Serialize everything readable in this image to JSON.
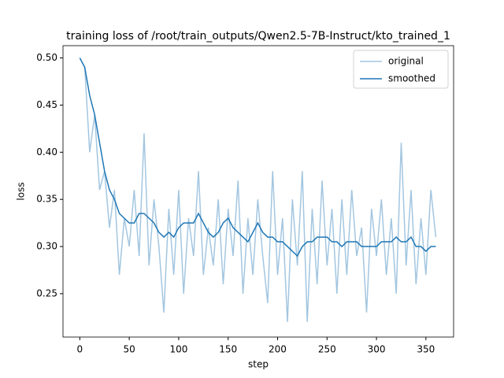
{
  "chart_data": {
    "type": "line",
    "title": "training loss of /root/train_outputs/Qwen2.5-7B-Instruct/kto_trained_1",
    "x_label": "step",
    "y_label": "loss",
    "x": [
      0,
      5,
      10,
      15,
      20,
      25,
      30,
      35,
      40,
      45,
      50,
      55,
      60,
      65,
      70,
      75,
      80,
      85,
      90,
      95,
      100,
      105,
      110,
      115,
      120,
      125,
      130,
      135,
      140,
      145,
      150,
      155,
      160,
      165,
      170,
      175,
      180,
      185,
      190,
      195,
      200,
      205,
      210,
      215,
      220,
      225,
      230,
      235,
      240,
      245,
      250,
      255,
      260,
      265,
      270,
      275,
      280,
      285,
      290,
      295,
      300,
      305,
      310,
      315,
      320,
      325,
      330,
      335,
      340,
      345,
      350,
      355,
      360
    ],
    "series": [
      {
        "name": "original",
        "color": "#a3c6e0",
        "values": [
          0.5,
          0.49,
          0.4,
          0.44,
          0.36,
          0.38,
          0.32,
          0.36,
          0.27,
          0.33,
          0.3,
          0.36,
          0.29,
          0.42,
          0.28,
          0.35,
          0.3,
          0.23,
          0.34,
          0.27,
          0.36,
          0.25,
          0.33,
          0.29,
          0.38,
          0.27,
          0.32,
          0.28,
          0.35,
          0.26,
          0.34,
          0.29,
          0.37,
          0.25,
          0.33,
          0.27,
          0.35,
          0.29,
          0.24,
          0.38,
          0.27,
          0.33,
          0.22,
          0.35,
          0.28,
          0.38,
          0.22,
          0.34,
          0.26,
          0.37,
          0.28,
          0.34,
          0.25,
          0.35,
          0.27,
          0.36,
          0.29,
          0.32,
          0.23,
          0.34,
          0.29,
          0.35,
          0.27,
          0.33,
          0.25,
          0.41,
          0.28,
          0.36,
          0.26,
          0.33,
          0.27,
          0.36,
          0.31
        ]
      },
      {
        "name": "smoothed",
        "color": "#1f77b4",
        "values": [
          0.5,
          0.49,
          0.46,
          0.44,
          0.41,
          0.38,
          0.36,
          0.35,
          0.335,
          0.33,
          0.325,
          0.325,
          0.335,
          0.335,
          0.33,
          0.325,
          0.315,
          0.31,
          0.315,
          0.31,
          0.32,
          0.325,
          0.325,
          0.325,
          0.335,
          0.325,
          0.315,
          0.31,
          0.315,
          0.325,
          0.33,
          0.32,
          0.315,
          0.31,
          0.305,
          0.315,
          0.325,
          0.315,
          0.31,
          0.31,
          0.305,
          0.305,
          0.3,
          0.295,
          0.29,
          0.3,
          0.305,
          0.305,
          0.31,
          0.31,
          0.31,
          0.305,
          0.305,
          0.3,
          0.305,
          0.305,
          0.305,
          0.3,
          0.3,
          0.3,
          0.3,
          0.305,
          0.305,
          0.305,
          0.31,
          0.305,
          0.305,
          0.31,
          0.3,
          0.3,
          0.295,
          0.3,
          0.3
        ]
      }
    ],
    "xlim": [
      -17,
      378
    ],
    "ylim": [
      0.204,
      0.513
    ],
    "xticks": [
      0,
      50,
      100,
      150,
      200,
      250,
      300,
      350
    ],
    "yticks": [
      0.25,
      {
        "value": 0.3,
        "label": "0.30"
      },
      0.35,
      {
        "value": 0.4,
        "label": "0.40"
      },
      0.45,
      {
        "value": 0.5,
        "label": "0.50"
      }
    ],
    "legend": "upper right"
  }
}
